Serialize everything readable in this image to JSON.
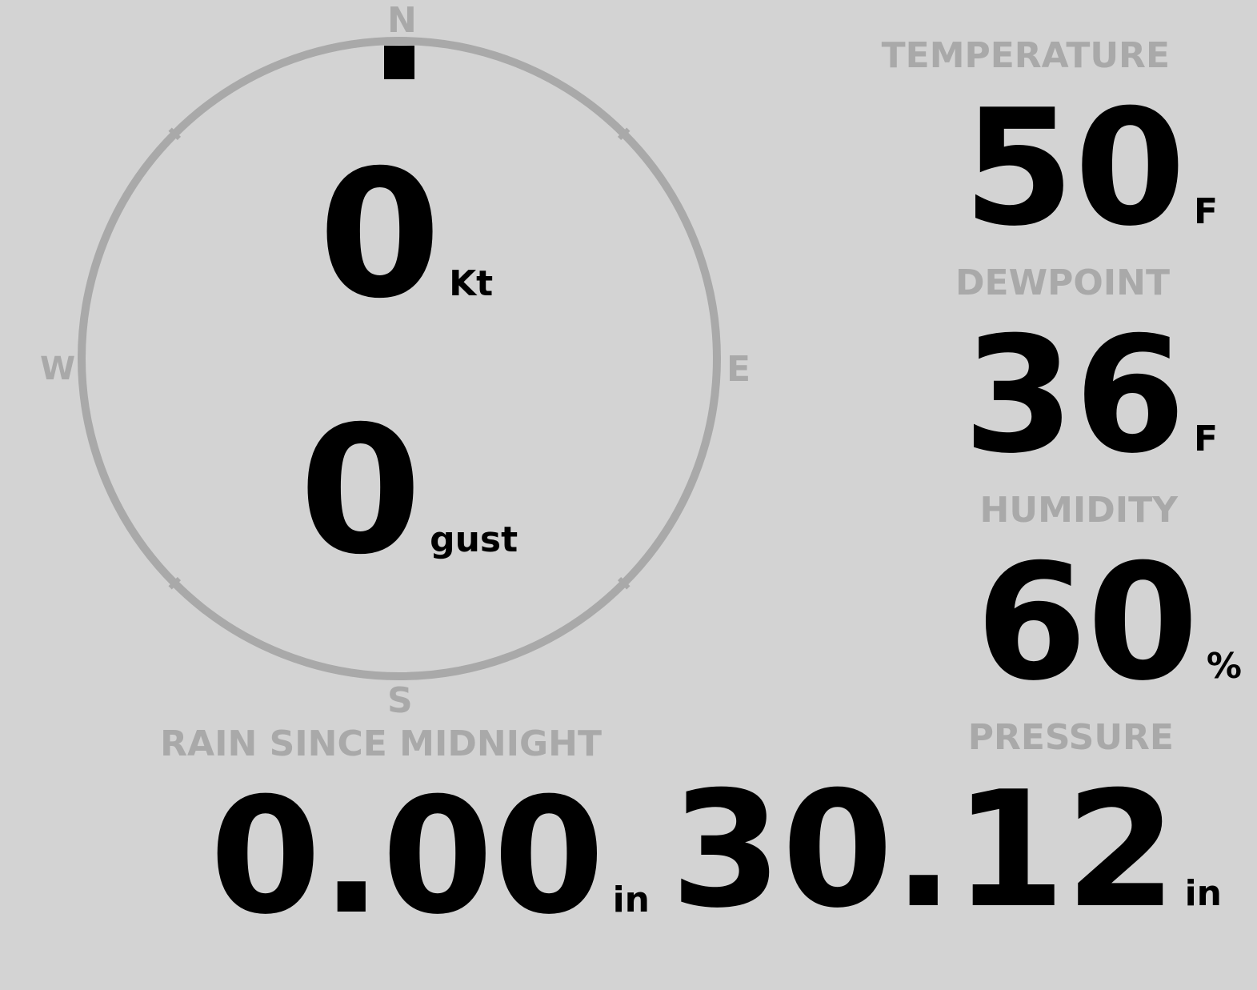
{
  "compass": {
    "north": "N",
    "south": "S",
    "east": "E",
    "west": "W",
    "wind_direction_deg": 0,
    "ring_color": "#a9a9a9",
    "indicator_color": "#000000"
  },
  "wind": {
    "speed": "0",
    "speed_unit": "Kt",
    "gust": "0",
    "gust_unit": "gust"
  },
  "temperature": {
    "label": "TEMPERATURE",
    "value": "50",
    "unit": "F"
  },
  "dewpoint": {
    "label": "DEWPOINT",
    "value": "36",
    "unit": "F"
  },
  "humidity": {
    "label": "HUMIDITY",
    "value": "60",
    "unit": "%"
  },
  "pressure": {
    "label": "PRESSURE",
    "value": "30.12",
    "unit": "in"
  },
  "rain": {
    "label": "RAIN SINCE MIDNIGHT",
    "value": "0.00",
    "unit": "in"
  },
  "colors": {
    "background": "#d3d3d3",
    "label": "#a9a9a9",
    "value": "#000000"
  }
}
